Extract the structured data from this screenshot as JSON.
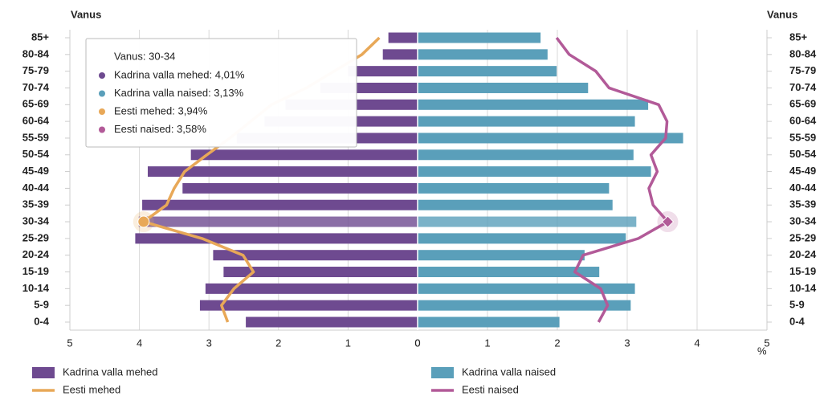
{
  "chart_data": {
    "type": "population-pyramid",
    "y_label": "Vanus",
    "x_label": "%",
    "categories": [
      "85+",
      "80-84",
      "75-79",
      "70-74",
      "65-69",
      "60-64",
      "55-59",
      "50-54",
      "45-49",
      "40-44",
      "35-39",
      "30-34",
      "25-29",
      "20-24",
      "15-19",
      "10-14",
      "5-9",
      "0-4"
    ],
    "xlim": [
      0,
      5
    ],
    "xticks": [
      0,
      1,
      2,
      3,
      4,
      5
    ],
    "grid": true,
    "highlight": 11,
    "series": [
      {
        "name": "Kadrina valla mehed",
        "kind": "bar",
        "side": "left",
        "color": "#6e4a90",
        "values": [
          0.42,
          0.5,
          1.0,
          1.4,
          1.9,
          2.2,
          2.6,
          3.26,
          3.88,
          3.38,
          3.96,
          4.01,
          4.06,
          2.94,
          2.79,
          3.05,
          3.13,
          2.47
        ]
      },
      {
        "name": "Kadrina valla naised",
        "kind": "bar",
        "side": "right",
        "color": "#5a9fba",
        "values": [
          1.76,
          1.86,
          1.99,
          2.44,
          3.3,
          3.11,
          3.8,
          3.09,
          3.34,
          2.74,
          2.79,
          3.13,
          2.98,
          2.39,
          2.6,
          3.11,
          3.05,
          2.03
        ]
      },
      {
        "name": "Eesti mehed",
        "kind": "line",
        "side": "left",
        "color": "#e8a858",
        "values": [
          0.55,
          0.8,
          1.2,
          1.6,
          2.1,
          2.4,
          2.7,
          3.03,
          3.35,
          3.5,
          3.61,
          3.94,
          3.1,
          2.51,
          2.36,
          2.64,
          2.82,
          2.73
        ]
      },
      {
        "name": "Eesti naised",
        "kind": "line",
        "side": "right",
        "color": "#b25a98",
        "values": [
          1.99,
          2.17,
          2.55,
          2.74,
          3.45,
          3.57,
          3.55,
          3.34,
          3.43,
          3.31,
          3.37,
          3.58,
          3.16,
          2.37,
          2.25,
          2.62,
          2.72,
          2.59
        ]
      }
    ],
    "tooltip": {
      "title": "Vanus: 30-34",
      "items": [
        "Kadrina valla mehed: 4,01%",
        "Kadrina valla naised: 3,13%",
        "Eesti mehed: 3,94%",
        "Eesti naised: 3,58%"
      ]
    }
  }
}
